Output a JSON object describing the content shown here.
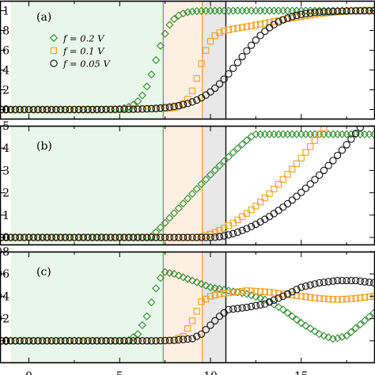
{
  "chart_data": [
    {
      "type": "scatter",
      "panel_label": "(a)",
      "xlim": [
        0,
        20
      ],
      "ylim": [
        -0.1,
        1.1
      ],
      "y_ticks": [
        {
          "value": 0.0,
          "label": "0"
        },
        {
          "value": 0.2,
          "label": ",2"
        },
        {
          "value": 0.4,
          "label": ",4"
        },
        {
          "value": 0.6,
          "label": ",6"
        },
        {
          "value": 0.8,
          "label": ",8"
        },
        {
          "value": 1.0,
          "label": "1"
        }
      ],
      "legend_position": "upper-left",
      "series": [
        {
          "name": "f = 0.2 V",
          "color": "#2e8b2e",
          "marker": "diamond",
          "curve": {
            "kind": "sigmoid",
            "a": 0,
            "b": 1.0,
            "x0": 7.0,
            "w": 0.42,
            "c": 0,
            "x1": 10,
            "w2": 1.5
          }
        },
        {
          "name": "f = 0.1 V",
          "color": "#f0a020",
          "marker": "square",
          "curve": {
            "kind": "sigmoid",
            "a": 0,
            "b": 0.76,
            "x0": 9.4,
            "w": 0.32,
            "c": 0.26,
            "x1": 13.5,
            "w2": 1.8
          }
        },
        {
          "name": "f = 0.05 V",
          "color": "#111111",
          "marker": "circle",
          "curve": {
            "kind": "sigmoid",
            "a": 0,
            "b": 1.0,
            "x0": 11.6,
            "w": 1.05,
            "c": 0,
            "x1": 10,
            "w2": 1.5
          }
        }
      ]
    },
    {
      "type": "scatter",
      "panel_label": "(b)",
      "xlim": [
        0,
        20
      ],
      "ylim": [
        -0.35,
        5.0
      ],
      "y_ticks": [
        {
          "value": 0,
          "label": "0"
        },
        {
          "value": 1,
          "label": "1"
        },
        {
          "value": 2,
          "label": "2"
        },
        {
          "value": 3,
          "label": "3"
        },
        {
          "value": 4,
          "label": "4"
        },
        {
          "value": 5,
          "label": "5"
        }
      ],
      "series": [
        {
          "name": "f = 0.2 V",
          "color": "#2e8b2e",
          "marker": "diamond",
          "curve": {
            "kind": "ramp",
            "x0": 6.7,
            "k": 0.83,
            "p": 1.05,
            "cap": 4.62,
            "sat": 15.5
          }
        },
        {
          "name": "f = 0.1 V",
          "color": "#f0a020",
          "marker": "square",
          "curve": {
            "kind": "ramp",
            "x0": 9.1,
            "k": 0.18,
            "p": 1.68,
            "cap": 9,
            "sat": 99
          }
        },
        {
          "name": "f = 0.05 V",
          "color": "#111111",
          "marker": "circle",
          "curve": {
            "kind": "ramp",
            "x0": 10.0,
            "k": 0.115,
            "p": 1.78,
            "cap": 9,
            "sat": 99
          }
        }
      ]
    },
    {
      "type": "scatter",
      "panel_label": "(c)",
      "xlim": [
        0,
        20
      ],
      "ylim": [
        -0.02,
        0.08
      ],
      "x_ticks": [
        0,
        5,
        10,
        15
      ],
      "y_ticks": [
        {
          "value": 0.0,
          "label": "0"
        },
        {
          "value": 0.02,
          "label": "02"
        },
        {
          "value": 0.04,
          "label": "04"
        },
        {
          "value": 0.06,
          "label": "06"
        },
        {
          "value": 0.08,
          "label": "08"
        }
      ],
      "series": [
        {
          "name": "f = 0.2 V",
          "color": "#2e8b2e",
          "marker": "diamond",
          "points": [
            [
              0,
              0
            ],
            [
              1,
              0
            ],
            [
              2,
              0
            ],
            [
              3,
              0
            ],
            [
              4,
              0
            ],
            [
              5,
              0
            ],
            [
              5.5,
              0.0005
            ],
            [
              6,
              0.006
            ],
            [
              6.5,
              0.022
            ],
            [
              7,
              0.047
            ],
            [
              7.4,
              0.062
            ],
            [
              8,
              0.06
            ],
            [
              9,
              0.054
            ],
            [
              10,
              0.048
            ],
            [
              11,
              0.045
            ],
            [
              12,
              0.042
            ],
            [
              13,
              0.037
            ],
            [
              14,
              0.028
            ],
            [
              15,
              0.016
            ],
            [
              16,
              0.006
            ],
            [
              16.8,
              0.0015
            ],
            [
              17.5,
              0.0045
            ],
            [
              18.2,
              0.014
            ],
            [
              19,
              0.025
            ],
            [
              19.8,
              0.03
            ]
          ]
        },
        {
          "name": "f = 0.1 V",
          "color": "#f0a020",
          "marker": "square",
          "points": [
            [
              0,
              0
            ],
            [
              2,
              0
            ],
            [
              4,
              0
            ],
            [
              6,
              0
            ],
            [
              7,
              0
            ],
            [
              8,
              0.0005
            ],
            [
              8.5,
              0.004
            ],
            [
              9,
              0.018
            ],
            [
              9.5,
              0.035
            ],
            [
              10,
              0.04
            ],
            [
              10.5,
              0.042
            ],
            [
              11,
              0.043
            ],
            [
              12,
              0.045
            ],
            [
              13,
              0.044
            ],
            [
              14,
              0.042
            ],
            [
              15,
              0.04
            ],
            [
              16,
              0.038
            ],
            [
              17,
              0.037
            ],
            [
              18,
              0.038
            ],
            [
              19,
              0.04
            ],
            [
              20,
              0.045
            ]
          ]
        },
        {
          "name": "f = 0.05 V",
          "color": "#111111",
          "marker": "circle",
          "points": [
            [
              0,
              0
            ],
            [
              2,
              0
            ],
            [
              4,
              0
            ],
            [
              6,
              0
            ],
            [
              7,
              0
            ],
            [
              8,
              0.0005
            ],
            [
              9,
              0.002
            ],
            [
              9.5,
              0.006
            ],
            [
              10,
              0.014
            ],
            [
              10.5,
              0.022
            ],
            [
              11,
              0.028
            ],
            [
              12,
              0.03
            ],
            [
              13,
              0.033
            ],
            [
              14,
              0.04
            ],
            [
              15,
              0.048
            ],
            [
              16,
              0.052
            ],
            [
              17,
              0.054
            ],
            [
              18,
              0.054
            ],
            [
              19,
              0.052
            ],
            [
              19.7,
              0.047
            ]
          ]
        }
      ]
    }
  ],
  "regions": [
    {
      "from": -1,
      "to": 7.4,
      "fill": "#e9f6ea"
    },
    {
      "from": 7.4,
      "to": 9.55,
      "fill": "#fdf0e2"
    },
    {
      "from": 9.55,
      "to": 10.85,
      "fill": "#e8e8e8"
    }
  ],
  "boundaries": [
    {
      "x": 7.4,
      "color": "#33cc33"
    },
    {
      "x": 9.55,
      "color": "#f0a050"
    },
    {
      "x": 10.85,
      "color": "#000000"
    }
  ],
  "x_axis": {
    "ticks": [
      {
        "value": 0,
        "label": "0"
      },
      {
        "value": 5,
        "label": "5"
      },
      {
        "value": 10,
        "label": "10"
      },
      {
        "value": 15,
        "label": "15"
      }
    ]
  },
  "legend": {
    "entries": [
      {
        "label": "f = 0.2 V",
        "color": "#2e8b2e",
        "marker": "diamond"
      },
      {
        "label": "f = 0.1 V",
        "color": "#f0a020",
        "marker": "square"
      },
      {
        "label": "f = 0.05 V",
        "color": "#111111",
        "marker": "circle"
      }
    ]
  }
}
